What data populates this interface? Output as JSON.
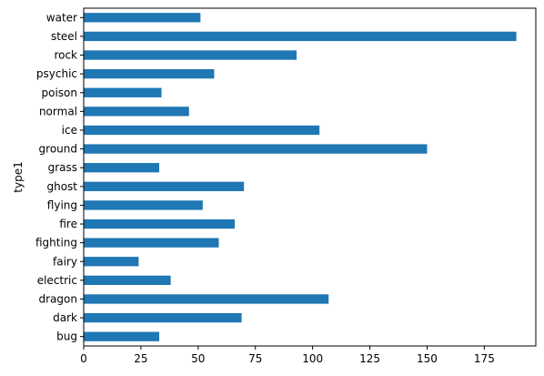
{
  "chart_data": {
    "type": "bar",
    "orientation": "horizontal",
    "categories": [
      "bug",
      "dark",
      "dragon",
      "electric",
      "fairy",
      "fighting",
      "fire",
      "flying",
      "ghost",
      "grass",
      "ground",
      "ice",
      "normal",
      "poison",
      "psychic",
      "rock",
      "steel",
      "water"
    ],
    "values": [
      33,
      69,
      107,
      38,
      24,
      59,
      66,
      52,
      70,
      33,
      150,
      103,
      46,
      34,
      57,
      93,
      189,
      51
    ],
    "title": "",
    "xlabel": "",
    "ylabel": "type1",
    "xlim": [
      0,
      197.5
    ],
    "xticks": [
      0,
      25,
      50,
      75,
      100,
      125,
      150,
      175
    ],
    "grid": false,
    "legend": "none",
    "bar_color": "#1f77b4"
  }
}
